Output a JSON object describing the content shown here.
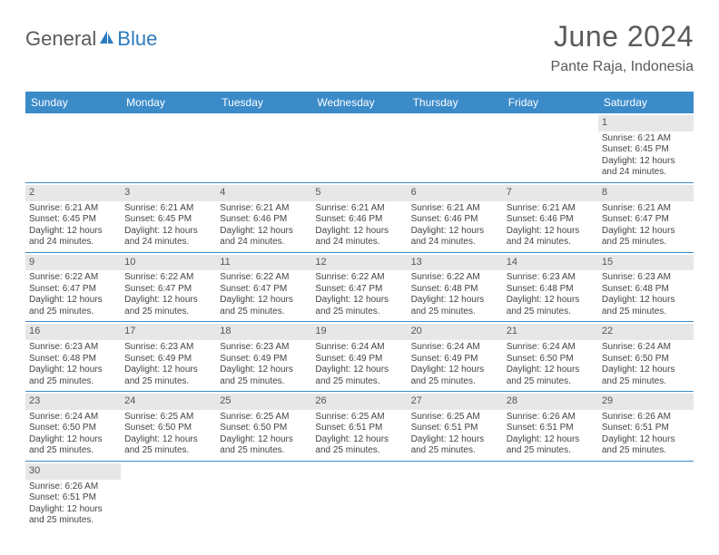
{
  "brand": {
    "part1": "General",
    "part2": "Blue"
  },
  "title": "June 2024",
  "location": "Pante Raja, Indonesia",
  "colors": {
    "header_bg": "#3b8bc9",
    "header_text": "#ffffff",
    "daynum_bg": "#e7e7e7",
    "border": "#3b8bc9",
    "body_text": "#444444",
    "title_text": "#5a5a5a",
    "brand_blue": "#2b7bbf"
  },
  "fonts": {
    "title_size_pt": 24,
    "location_size_pt": 12,
    "header_size_pt": 9,
    "cell_size_pt": 7.5
  },
  "day_labels": [
    "Sunday",
    "Monday",
    "Tuesday",
    "Wednesday",
    "Thursday",
    "Friday",
    "Saturday"
  ],
  "weeks": [
    [
      null,
      null,
      null,
      null,
      null,
      null,
      {
        "n": "1",
        "sr": "Sunrise: 6:21 AM",
        "ss": "Sunset: 6:45 PM",
        "d1": "Daylight: 12 hours",
        "d2": "and 24 minutes."
      }
    ],
    [
      {
        "n": "2",
        "sr": "Sunrise: 6:21 AM",
        "ss": "Sunset: 6:45 PM",
        "d1": "Daylight: 12 hours",
        "d2": "and 24 minutes."
      },
      {
        "n": "3",
        "sr": "Sunrise: 6:21 AM",
        "ss": "Sunset: 6:45 PM",
        "d1": "Daylight: 12 hours",
        "d2": "and 24 minutes."
      },
      {
        "n": "4",
        "sr": "Sunrise: 6:21 AM",
        "ss": "Sunset: 6:46 PM",
        "d1": "Daylight: 12 hours",
        "d2": "and 24 minutes."
      },
      {
        "n": "5",
        "sr": "Sunrise: 6:21 AM",
        "ss": "Sunset: 6:46 PM",
        "d1": "Daylight: 12 hours",
        "d2": "and 24 minutes."
      },
      {
        "n": "6",
        "sr": "Sunrise: 6:21 AM",
        "ss": "Sunset: 6:46 PM",
        "d1": "Daylight: 12 hours",
        "d2": "and 24 minutes."
      },
      {
        "n": "7",
        "sr": "Sunrise: 6:21 AM",
        "ss": "Sunset: 6:46 PM",
        "d1": "Daylight: 12 hours",
        "d2": "and 24 minutes."
      },
      {
        "n": "8",
        "sr": "Sunrise: 6:21 AM",
        "ss": "Sunset: 6:47 PM",
        "d1": "Daylight: 12 hours",
        "d2": "and 25 minutes."
      }
    ],
    [
      {
        "n": "9",
        "sr": "Sunrise: 6:22 AM",
        "ss": "Sunset: 6:47 PM",
        "d1": "Daylight: 12 hours",
        "d2": "and 25 minutes."
      },
      {
        "n": "10",
        "sr": "Sunrise: 6:22 AM",
        "ss": "Sunset: 6:47 PM",
        "d1": "Daylight: 12 hours",
        "d2": "and 25 minutes."
      },
      {
        "n": "11",
        "sr": "Sunrise: 6:22 AM",
        "ss": "Sunset: 6:47 PM",
        "d1": "Daylight: 12 hours",
        "d2": "and 25 minutes."
      },
      {
        "n": "12",
        "sr": "Sunrise: 6:22 AM",
        "ss": "Sunset: 6:47 PM",
        "d1": "Daylight: 12 hours",
        "d2": "and 25 minutes."
      },
      {
        "n": "13",
        "sr": "Sunrise: 6:22 AM",
        "ss": "Sunset: 6:48 PM",
        "d1": "Daylight: 12 hours",
        "d2": "and 25 minutes."
      },
      {
        "n": "14",
        "sr": "Sunrise: 6:23 AM",
        "ss": "Sunset: 6:48 PM",
        "d1": "Daylight: 12 hours",
        "d2": "and 25 minutes."
      },
      {
        "n": "15",
        "sr": "Sunrise: 6:23 AM",
        "ss": "Sunset: 6:48 PM",
        "d1": "Daylight: 12 hours",
        "d2": "and 25 minutes."
      }
    ],
    [
      {
        "n": "16",
        "sr": "Sunrise: 6:23 AM",
        "ss": "Sunset: 6:48 PM",
        "d1": "Daylight: 12 hours",
        "d2": "and 25 minutes."
      },
      {
        "n": "17",
        "sr": "Sunrise: 6:23 AM",
        "ss": "Sunset: 6:49 PM",
        "d1": "Daylight: 12 hours",
        "d2": "and 25 minutes."
      },
      {
        "n": "18",
        "sr": "Sunrise: 6:23 AM",
        "ss": "Sunset: 6:49 PM",
        "d1": "Daylight: 12 hours",
        "d2": "and 25 minutes."
      },
      {
        "n": "19",
        "sr": "Sunrise: 6:24 AM",
        "ss": "Sunset: 6:49 PM",
        "d1": "Daylight: 12 hours",
        "d2": "and 25 minutes."
      },
      {
        "n": "20",
        "sr": "Sunrise: 6:24 AM",
        "ss": "Sunset: 6:49 PM",
        "d1": "Daylight: 12 hours",
        "d2": "and 25 minutes."
      },
      {
        "n": "21",
        "sr": "Sunrise: 6:24 AM",
        "ss": "Sunset: 6:50 PM",
        "d1": "Daylight: 12 hours",
        "d2": "and 25 minutes."
      },
      {
        "n": "22",
        "sr": "Sunrise: 6:24 AM",
        "ss": "Sunset: 6:50 PM",
        "d1": "Daylight: 12 hours",
        "d2": "and 25 minutes."
      }
    ],
    [
      {
        "n": "23",
        "sr": "Sunrise: 6:24 AM",
        "ss": "Sunset: 6:50 PM",
        "d1": "Daylight: 12 hours",
        "d2": "and 25 minutes."
      },
      {
        "n": "24",
        "sr": "Sunrise: 6:25 AM",
        "ss": "Sunset: 6:50 PM",
        "d1": "Daylight: 12 hours",
        "d2": "and 25 minutes."
      },
      {
        "n": "25",
        "sr": "Sunrise: 6:25 AM",
        "ss": "Sunset: 6:50 PM",
        "d1": "Daylight: 12 hours",
        "d2": "and 25 minutes."
      },
      {
        "n": "26",
        "sr": "Sunrise: 6:25 AM",
        "ss": "Sunset: 6:51 PM",
        "d1": "Daylight: 12 hours",
        "d2": "and 25 minutes."
      },
      {
        "n": "27",
        "sr": "Sunrise: 6:25 AM",
        "ss": "Sunset: 6:51 PM",
        "d1": "Daylight: 12 hours",
        "d2": "and 25 minutes."
      },
      {
        "n": "28",
        "sr": "Sunrise: 6:26 AM",
        "ss": "Sunset: 6:51 PM",
        "d1": "Daylight: 12 hours",
        "d2": "and 25 minutes."
      },
      {
        "n": "29",
        "sr": "Sunrise: 6:26 AM",
        "ss": "Sunset: 6:51 PM",
        "d1": "Daylight: 12 hours",
        "d2": "and 25 minutes."
      }
    ],
    [
      {
        "n": "30",
        "sr": "Sunrise: 6:26 AM",
        "ss": "Sunset: 6:51 PM",
        "d1": "Daylight: 12 hours",
        "d2": "and 25 minutes."
      },
      null,
      null,
      null,
      null,
      null,
      null
    ]
  ]
}
